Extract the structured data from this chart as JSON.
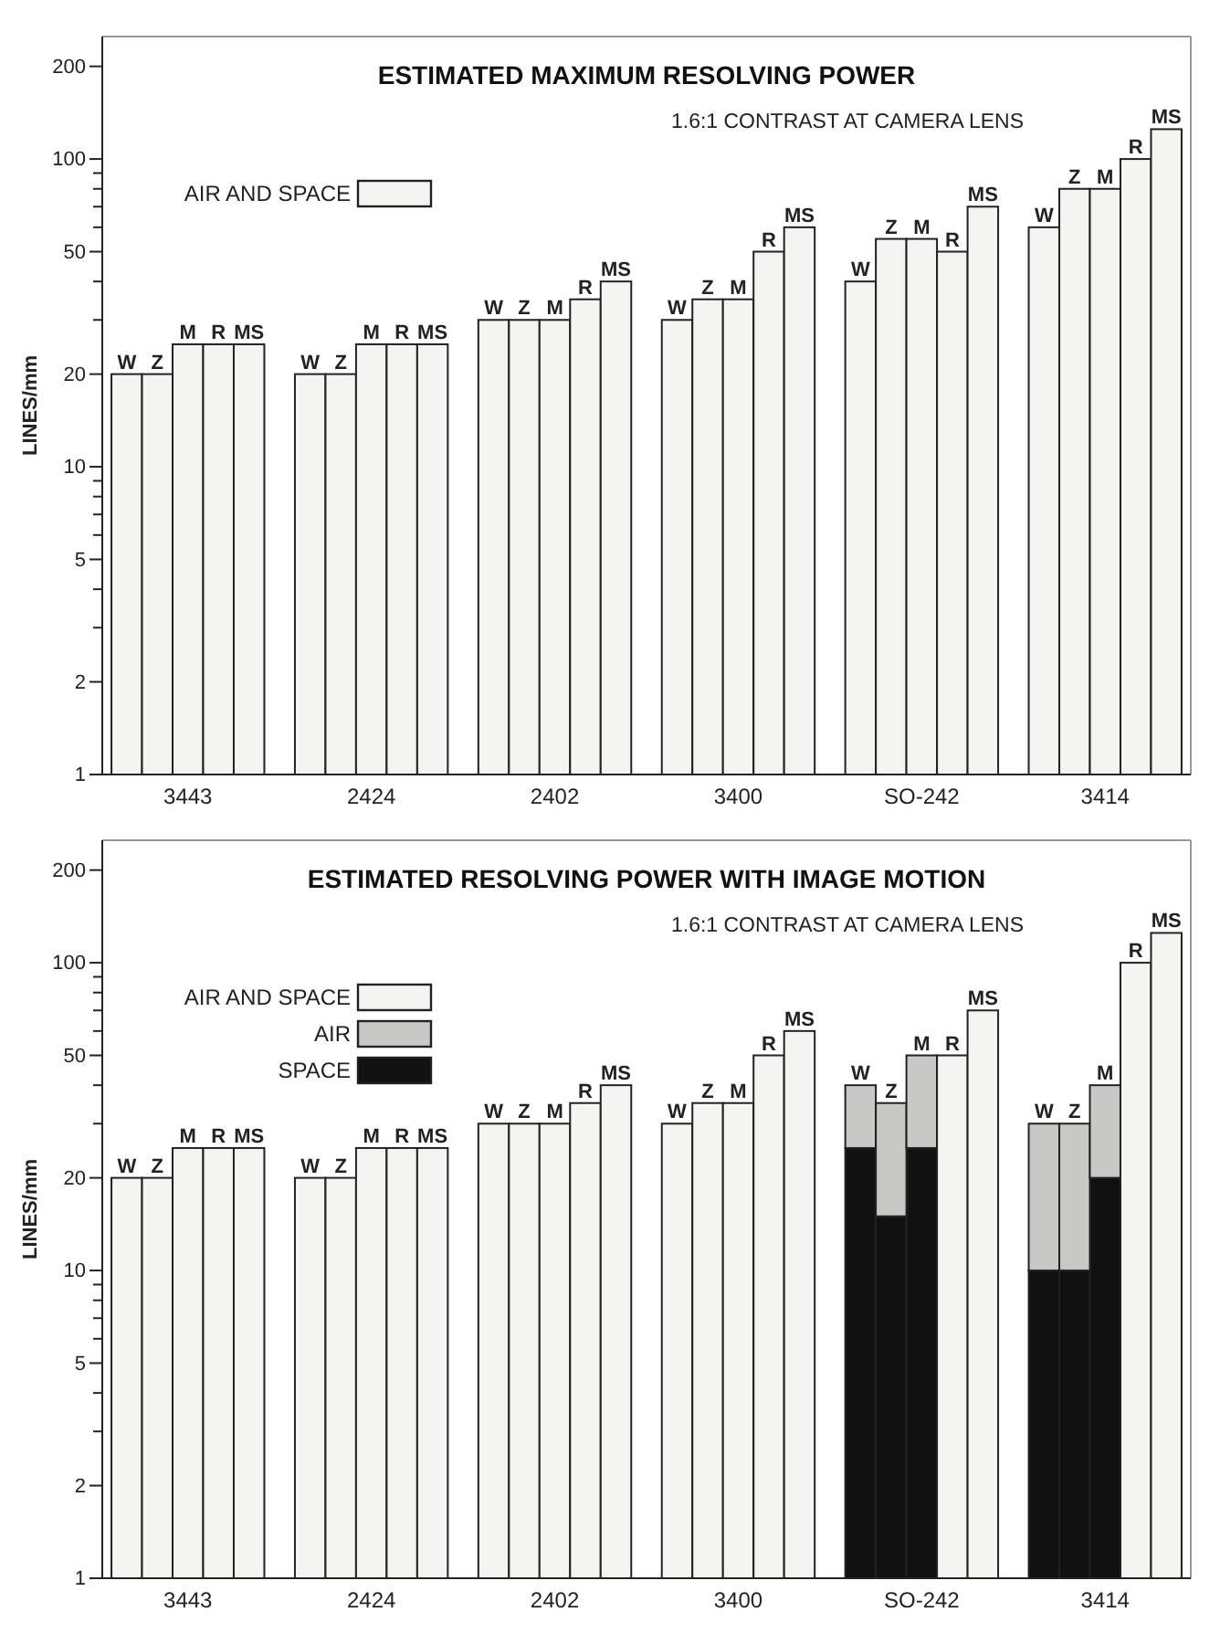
{
  "chart_data": [
    {
      "type": "bar",
      "title": "ESTIMATED MAXIMUM RESOLVING POWER",
      "subtitle": "1.6:1 CONTRAST AT CAMERA LENS",
      "ylabel": "LINES/mm",
      "categories": [
        null,
        null,
        "3443",
        null,
        null,
        null,
        null,
        null,
        "2424",
        null,
        null,
        null,
        null,
        null,
        "2402",
        null,
        null,
        null,
        null,
        null,
        "3400",
        null,
        null,
        null,
        null,
        null,
        "SO-242",
        null,
        null,
        null,
        null,
        null,
        "3414",
        null,
        null
      ],
      "series": [
        {
          "name": "AIR AND SPACE",
          "color": "#f4f4f2",
          "values": [
            20,
            20,
            25,
            25,
            25,
            null,
            20,
            20,
            25,
            25,
            25,
            null,
            30,
            30,
            30,
            35,
            40,
            null,
            30,
            35,
            35,
            50,
            60,
            null,
            40,
            55,
            55,
            50,
            70,
            null,
            60,
            80,
            80,
            100,
            125
          ],
          "value_labels": [
            "W",
            "Z",
            "M",
            "R",
            "MS",
            null,
            "W",
            "Z",
            "M",
            "R",
            "MS",
            null,
            "W",
            "Z",
            "M",
            "R",
            "MS",
            null,
            "W",
            "Z",
            "M",
            "R",
            "MS",
            null,
            "W",
            "Z",
            "M",
            "R",
            "MS",
            null,
            "W",
            "Z",
            "M",
            "R",
            "MS"
          ]
        }
      ],
      "log": true,
      "ylim": [
        1,
        250
      ],
      "yticks": [
        1,
        2,
        {
          "value": 3,
          "label": null
        },
        {
          "value": 4,
          "label": null
        },
        5,
        {
          "value": 6,
          "label": null
        },
        {
          "value": 7,
          "label": null
        },
        {
          "value": 8,
          "label": null
        },
        {
          "value": 9,
          "label": null
        },
        10,
        20,
        {
          "value": 30,
          "label": null
        },
        {
          "value": 40,
          "label": null
        },
        50,
        {
          "value": 60,
          "label": null
        },
        {
          "value": 70,
          "label": null
        },
        {
          "value": 80,
          "label": null
        },
        {
          "value": 90,
          "label": null
        },
        100,
        200
      ],
      "legend": "top left",
      "grid": false
    },
    {
      "type": "bar",
      "title": "ESTIMATED RESOLVING POWER WITH IMAGE MOTION",
      "subtitle": "1.6:1 CONTRAST AT CAMERA LENS",
      "ylabel": "LINES/mm",
      "categories": [
        null,
        null,
        "3443",
        null,
        null,
        null,
        null,
        null,
        "2424",
        null,
        null,
        null,
        null,
        null,
        "2402",
        null,
        null,
        null,
        null,
        null,
        "3400",
        null,
        null,
        null,
        null,
        null,
        "SO-242",
        null,
        null,
        null,
        null,
        null,
        "3414",
        null,
        null
      ],
      "stacked": true,
      "series": [
        {
          "name": "SPACE",
          "color": "#111111",
          "values": [
            null,
            null,
            null,
            null,
            null,
            null,
            null,
            null,
            null,
            null,
            null,
            null,
            null,
            null,
            null,
            null,
            null,
            null,
            null,
            null,
            null,
            null,
            null,
            null,
            25,
            15,
            25,
            null,
            null,
            null,
            10,
            10,
            20,
            null,
            null
          ]
        },
        {
          "name": "AIR",
          "color": "#c8c8c6",
          "values": [
            null,
            null,
            null,
            null,
            null,
            null,
            null,
            null,
            null,
            null,
            null,
            null,
            null,
            null,
            null,
            null,
            null,
            null,
            null,
            null,
            null,
            null,
            null,
            null,
            15,
            20,
            25,
            null,
            null,
            null,
            20,
            20,
            20,
            null,
            null
          ],
          "value_labels": [
            null,
            null,
            null,
            null,
            null,
            null,
            null,
            null,
            null,
            null,
            null,
            null,
            null,
            null,
            null,
            null,
            null,
            null,
            null,
            null,
            null,
            null,
            null,
            null,
            "W",
            "Z",
            "M",
            null,
            null,
            null,
            "W",
            "Z",
            "M",
            null,
            null
          ]
        },
        {
          "name": "AIR AND SPACE",
          "color": "#f4f4f2",
          "values": [
            20,
            20,
            25,
            25,
            25,
            null,
            20,
            20,
            25,
            25,
            25,
            null,
            30,
            30,
            30,
            35,
            40,
            null,
            30,
            35,
            35,
            50,
            60,
            null,
            null,
            null,
            null,
            50,
            70,
            null,
            null,
            null,
            null,
            100,
            125
          ],
          "value_labels": [
            "W",
            "Z",
            "M",
            "R",
            "MS",
            null,
            "W",
            "Z",
            "M",
            "R",
            "MS",
            null,
            "W",
            "Z",
            "M",
            "R",
            "MS",
            null,
            "W",
            "Z",
            "M",
            "R",
            "MS",
            null,
            null,
            null,
            null,
            "R",
            "MS",
            null,
            null,
            null,
            null,
            "R",
            "MS"
          ]
        }
      ],
      "log": true,
      "ylim": [
        1,
        250
      ],
      "yticks": [
        1,
        2,
        {
          "value": 3,
          "label": null
        },
        {
          "value": 4,
          "label": null
        },
        5,
        {
          "value": 6,
          "label": null
        },
        {
          "value": 7,
          "label": null
        },
        {
          "value": 8,
          "label": null
        },
        {
          "value": 9,
          "label": null
        },
        10,
        20,
        {
          "value": 30,
          "label": null
        },
        {
          "value": 40,
          "label": null
        },
        50,
        {
          "value": 60,
          "label": null
        },
        {
          "value": 70,
          "label": null
        },
        {
          "value": 80,
          "label": null
        },
        {
          "value": 90,
          "label": null
        },
        100,
        200
      ],
      "legend": "top left",
      "grid": false
    }
  ]
}
